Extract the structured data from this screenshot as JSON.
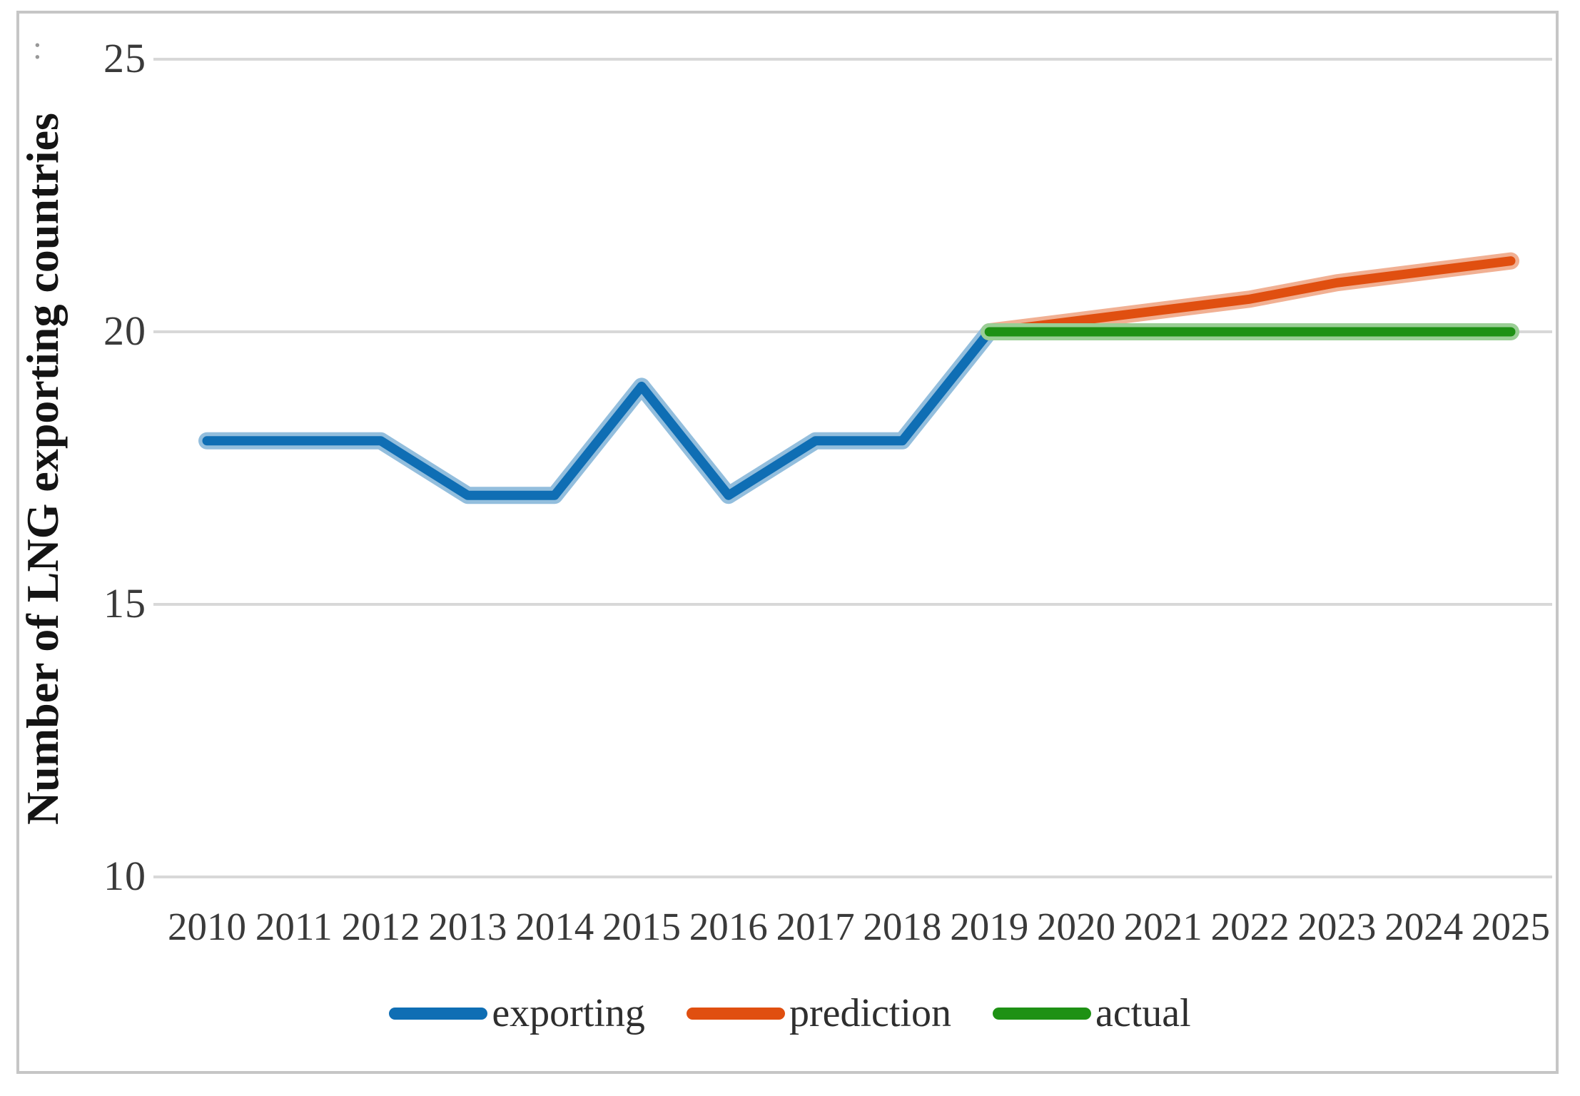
{
  "figure": {
    "stray_mark": ":"
  },
  "chart_data": {
    "type": "line",
    "title": "",
    "xlabel": "",
    "ylabel": "Number of LNG exporting countries",
    "x": [
      2010,
      2011,
      2012,
      2013,
      2014,
      2015,
      2016,
      2017,
      2018,
      2019,
      2020,
      2021,
      2022,
      2023,
      2024,
      2025
    ],
    "yticks": [
      25,
      20,
      15,
      10
    ],
    "ylim": [
      10,
      25
    ],
    "grid": "horizontal",
    "gridline_color": "#d8d8d8",
    "legend_position": "bottom",
    "text_color": "#3a3a3a",
    "series": [
      {
        "name": "exporting",
        "color": "#0f6eb4",
        "values": [
          18,
          18,
          18,
          17,
          17,
          19,
          17,
          18,
          18,
          20,
          null,
          null,
          null,
          null,
          null,
          null
        ]
      },
      {
        "name": "prediction",
        "color": "#e04f10",
        "values": [
          null,
          null,
          null,
          null,
          null,
          null,
          null,
          null,
          null,
          20,
          20.2,
          20.4,
          20.6,
          20.9,
          21.1,
          21.3
        ]
      },
      {
        "name": "actual",
        "color": "#1e9114",
        "values": [
          null,
          null,
          null,
          null,
          null,
          null,
          null,
          null,
          null,
          20,
          20,
          20,
          20,
          20,
          20,
          20
        ]
      }
    ]
  }
}
